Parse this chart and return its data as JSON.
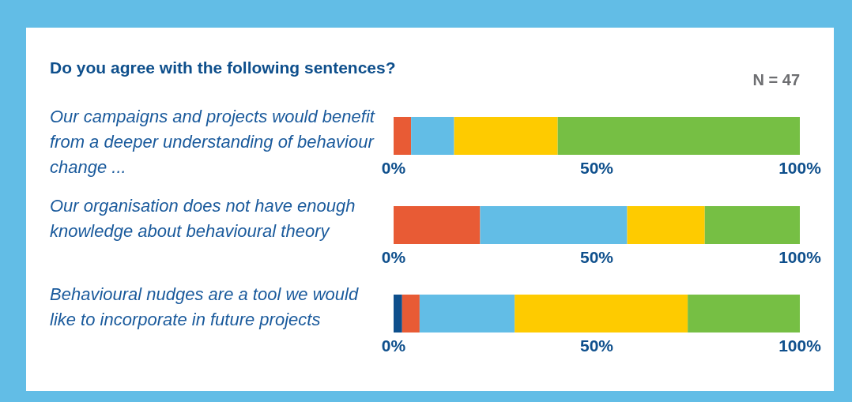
{
  "chart_data": {
    "type": "bar",
    "orientation": "horizontal",
    "stacked": true,
    "title": "Do you agree with the following sentences?",
    "annotations": [
      "N = 47"
    ],
    "categories": [
      "Our campaigns and projects would benefit from a deeper understanding of behaviour change ...",
      "Our organisation does not have enough knowledge about behavioural theory",
      "Behavioural nudges are a tool we would like to incorporate in future projects"
    ],
    "series": [
      {
        "color": "#0e4f8c",
        "values": [
          0,
          0,
          2.1
        ]
      },
      {
        "color": "#e85b35",
        "values": [
          4.3,
          21.3,
          4.3
        ]
      },
      {
        "color": "#62bde6",
        "values": [
          10.6,
          36.2,
          23.4
        ]
      },
      {
        "color": "#fecb00",
        "values": [
          25.5,
          19.1,
          42.6
        ]
      },
      {
        "color": "#76bf44",
        "values": [
          59.6,
          23.4,
          27.7
        ]
      }
    ],
    "xlim": [
      0,
      100
    ],
    "xticks": [
      {
        "value": 0,
        "label": "0%"
      },
      {
        "value": 50,
        "label": "50%"
      },
      {
        "value": 100,
        "label": "100%"
      }
    ],
    "grid": false,
    "legend": false
  }
}
